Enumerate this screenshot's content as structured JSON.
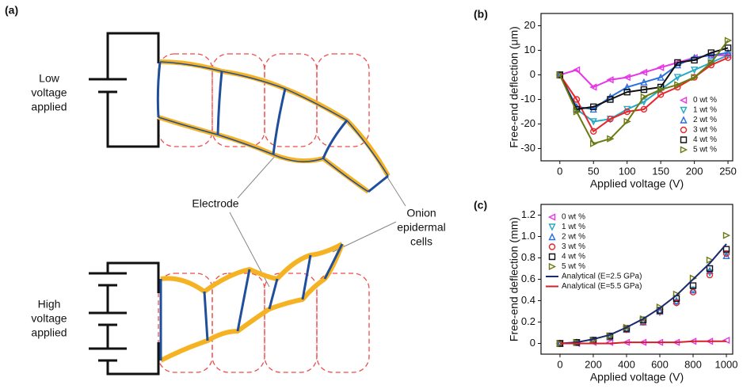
{
  "diagram": {
    "panel": "(a)",
    "top_label": [
      "Low",
      "voltage",
      "applied"
    ],
    "bottom_label": [
      "High",
      "voltage",
      "applied"
    ],
    "electrode": "Electrode",
    "cells": [
      "Onion",
      "epidermal",
      "cells"
    ]
  },
  "chart_data": [
    {
      "type": "line",
      "panel": "(b)",
      "x_label": "Applied voltage (V)",
      "y_label": "Free-end deflection (μm)",
      "x": [
        0,
        25,
        50,
        75,
        100,
        125,
        150,
        175,
        200,
        225,
        250
      ],
      "xlim": [
        -28,
        257
      ],
      "ylim": [
        -35,
        25
      ],
      "xticks": [
        0,
        50,
        100,
        150,
        200,
        250
      ],
      "yticks": [
        -30,
        -20,
        -10,
        0,
        10,
        20
      ],
      "legend": "lower right",
      "series": [
        {
          "name": "0 wt %",
          "color": "#e636e6",
          "marker": "triangle-left",
          "line": true,
          "values": [
            0,
            2,
            -5,
            -2,
            -1,
            1,
            3,
            5,
            7,
            8,
            8
          ]
        },
        {
          "name": "1 wt %",
          "color": "#2aa8c4",
          "marker": "triangle-down",
          "line": true,
          "values": [
            0,
            -14,
            -19,
            -18,
            -14,
            -11,
            -6,
            -1,
            2,
            5,
            8
          ]
        },
        {
          "name": "2 wt %",
          "color": "#2b6fe0",
          "marker": "triangle-up",
          "line": true,
          "values": [
            0,
            -13,
            -14,
            -9,
            -5,
            -3,
            -1,
            4,
            7,
            8,
            9
          ]
        },
        {
          "name": "3 wt %",
          "color": "#e8242a",
          "marker": "circle",
          "line": true,
          "values": [
            0,
            -10,
            -23,
            -18,
            -15,
            -14,
            -8,
            -5,
            -1,
            4,
            7
          ]
        },
        {
          "name": "4 wt %",
          "color": "#111111",
          "marker": "square",
          "line": true,
          "values": [
            0,
            -14,
            -13,
            -10,
            -7,
            -6,
            -5,
            5,
            6,
            9,
            11
          ]
        },
        {
          "name": "5 wt %",
          "color": "#6b7a12",
          "marker": "triangle-right",
          "line": true,
          "values": [
            0,
            -15,
            -28,
            -26,
            -19,
            -9,
            -6,
            -4,
            -1,
            5,
            14
          ]
        }
      ]
    },
    {
      "type": "line",
      "panel": "(c)",
      "x_label": "Applied voltage (V)",
      "y_label": "Free-end deflection (mm)",
      "x": [
        0,
        100,
        200,
        300,
        400,
        500,
        600,
        700,
        800,
        900,
        1000
      ],
      "xlim": [
        -114,
        1038
      ],
      "ylim": [
        -0.1,
        1.3
      ],
      "xticks": [
        0,
        200,
        400,
        600,
        800,
        1000
      ],
      "yticks": [
        0,
        0.2,
        0.4,
        0.6,
        0.8,
        {
          "value": 1,
          "label": "1.0"
        },
        1.2
      ],
      "legend": "upper left",
      "series": [
        {
          "name": "0 wt %",
          "color": "#e636e6",
          "marker": "triangle-left",
          "line": false,
          "values": [
            0,
            0,
            0.01,
            0.01,
            0.01,
            0.01,
            0.01,
            0.01,
            0.02,
            0.02,
            0.03
          ]
        },
        {
          "name": "1 wt %",
          "color": "#2aa8c4",
          "marker": "triangle-down",
          "line": false,
          "values": [
            0,
            0.01,
            0.03,
            0.06,
            0.13,
            0.2,
            0.29,
            0.38,
            0.5,
            0.66,
            0.84
          ]
        },
        {
          "name": "2 wt %",
          "color": "#2b6fe0",
          "marker": "triangle-up",
          "line": false,
          "values": [
            0,
            0.01,
            0.03,
            0.06,
            0.13,
            0.2,
            0.3,
            0.4,
            0.5,
            0.68,
            0.82
          ]
        },
        {
          "name": "3 wt %",
          "color": "#e8242a",
          "marker": "circle",
          "line": false,
          "values": [
            0,
            0.01,
            0.03,
            0.06,
            0.13,
            0.2,
            0.3,
            0.38,
            0.48,
            0.64,
            0.84
          ]
        },
        {
          "name": "4 wt %",
          "color": "#111111",
          "marker": "square",
          "line": false,
          "values": [
            0,
            0.01,
            0.03,
            0.07,
            0.14,
            0.22,
            0.31,
            0.42,
            0.54,
            0.7,
            0.88
          ]
        },
        {
          "name": "5 wt %",
          "color": "#6b7a12",
          "marker": "triangle-right",
          "line": false,
          "values": [
            0,
            0.01,
            0.03,
            0.07,
            0.15,
            0.23,
            0.34,
            0.46,
            0.61,
            0.78,
            1.01
          ]
        },
        {
          "name": "Analytical (E=2.5 GPa)",
          "color": "#1a2a6c",
          "marker": "none",
          "line": true,
          "values": [
            0,
            0.01,
            0.04,
            0.08,
            0.15,
            0.23,
            0.33,
            0.45,
            0.6,
            0.75,
            0.93
          ]
        },
        {
          "name": "Analytical (E=5.5 GPa)",
          "color": "#d41f2a",
          "marker": "none",
          "line": true,
          "values": [
            0,
            0,
            0,
            0,
            0.01,
            0.01,
            0.01,
            0.01,
            0.02,
            0.02,
            0.02
          ]
        }
      ]
    }
  ]
}
